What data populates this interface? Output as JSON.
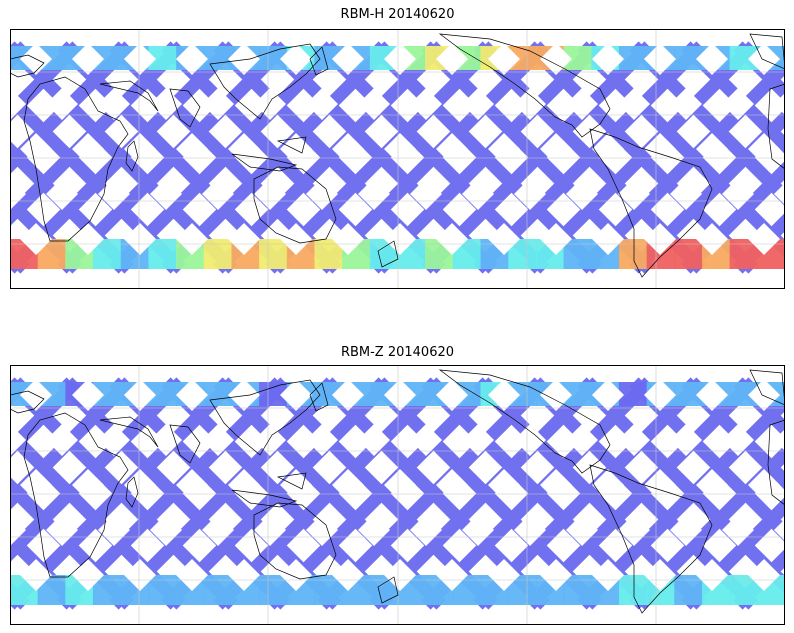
{
  "figure": {
    "panels": [
      {
        "title": "RBM-H 20140620",
        "variable": "RBM-H"
      },
      {
        "title": "RBM-Z 20140620",
        "variable": "RBM-Z"
      }
    ]
  },
  "colors": {
    "track_low": "#6a6af0",
    "track_mid": "#5fb4f5",
    "track_cyan": "#66ecec",
    "track_green": "#9af59a",
    "track_yellow": "#f0ec70",
    "track_orange": "#f8aa60",
    "track_high": "#f06060",
    "coastline": "#000000",
    "gridline": "#c8c8c8",
    "frame": "#000000"
  }
}
